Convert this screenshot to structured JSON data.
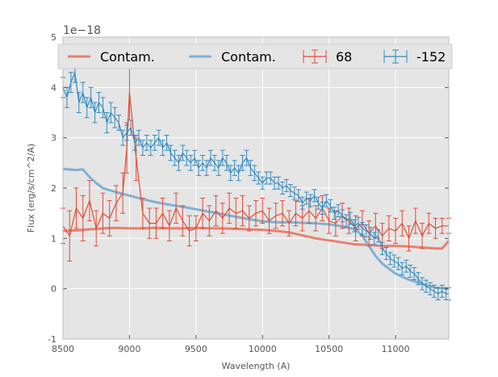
{
  "chart_data": {
    "type": "line",
    "xlabel": "Wavelength (A)",
    "ylabel": "Flux (erg/s/cm^2/A)",
    "y_offset_label": "1e−18",
    "xlim": [
      8500,
      11400
    ],
    "ylim": [
      -1,
      5
    ],
    "xticks": [
      8500,
      9000,
      9500,
      10000,
      10500,
      11000
    ],
    "yticks": [
      -1,
      0,
      1,
      2,
      3,
      4,
      5
    ],
    "grid": true,
    "legend_position": "top",
    "series": [
      {
        "name": "Contam.",
        "kind": "line",
        "color": "#E8806F",
        "x": [
          8500,
          8600,
          8700,
          8800,
          8900,
          9000,
          9100,
          9200,
          9300,
          9400,
          9500,
          9600,
          9700,
          9800,
          9900,
          10000,
          10100,
          10200,
          10300,
          10400,
          10500,
          10600,
          10700,
          10800,
          10900,
          11000,
          11100,
          11200,
          11300,
          11350,
          11400
        ],
        "y": [
          1.15,
          1.16,
          1.18,
          1.2,
          1.21,
          1.2,
          1.2,
          1.21,
          1.2,
          1.2,
          1.21,
          1.2,
          1.2,
          1.19,
          1.18,
          1.17,
          1.15,
          1.12,
          1.06,
          1.0,
          0.96,
          0.92,
          0.88,
          0.87,
          0.85,
          0.85,
          0.84,
          0.82,
          0.8,
          0.8,
          0.95
        ]
      },
      {
        "name": "Contam.",
        "kind": "line",
        "color": "#7FB0D4",
        "x": [
          8500,
          8600,
          8650,
          8700,
          8750,
          8800,
          8900,
          9000,
          9100,
          9200,
          9300,
          9400,
          9500,
          9600,
          9700,
          9800,
          9900,
          10000,
          10100,
          10200,
          10300,
          10400,
          10500,
          10600,
          10700,
          10750,
          10800,
          10850,
          10900,
          11000,
          11100,
          11200,
          11300,
          11400
        ],
        "y": [
          2.38,
          2.36,
          2.37,
          2.22,
          2.1,
          2.0,
          1.92,
          1.85,
          1.78,
          1.72,
          1.67,
          1.63,
          1.58,
          1.53,
          1.48,
          1.43,
          1.38,
          1.34,
          1.32,
          1.32,
          1.31,
          1.3,
          1.28,
          1.24,
          1.18,
          1.05,
          0.85,
          0.65,
          0.5,
          0.3,
          0.18,
          0.1,
          0.02,
          0.0
        ]
      },
      {
        "name": "68",
        "kind": "errorbar",
        "color": "#E24A33",
        "x": [
          8500,
          8550,
          8600,
          8650,
          8700,
          8750,
          8800,
          8850,
          8900,
          8950,
          8980,
          9000,
          9050,
          9100,
          9150,
          9200,
          9250,
          9300,
          9350,
          9400,
          9450,
          9500,
          9550,
          9600,
          9650,
          9700,
          9750,
          9800,
          9850,
          9900,
          9950,
          10000,
          10050,
          10100,
          10150,
          10200,
          10250,
          10300,
          10350,
          10400,
          10450,
          10500,
          10550,
          10600,
          10650,
          10700,
          10750,
          10800,
          10850,
          10900,
          10950,
          11000,
          11050,
          11100,
          11150,
          11200,
          11250,
          11300,
          11350,
          11400
        ],
        "y": [
          1.25,
          1.05,
          1.6,
          1.4,
          1.75,
          1.2,
          1.5,
          1.4,
          1.7,
          1.9,
          2.8,
          3.9,
          2.6,
          1.5,
          1.3,
          1.3,
          1.5,
          1.25,
          1.6,
          1.35,
          1.15,
          1.2,
          1.5,
          1.35,
          1.55,
          1.4,
          1.6,
          1.5,
          1.55,
          1.4,
          1.5,
          1.55,
          1.35,
          1.45,
          1.5,
          1.3,
          1.5,
          1.4,
          1.55,
          1.4,
          1.6,
          1.35,
          1.3,
          1.45,
          1.35,
          1.2,
          1.3,
          1.1,
          1.25,
          1.05,
          1.2,
          1.15,
          1.3,
          1.0,
          1.35,
          1.05,
          1.3,
          1.2,
          1.25,
          1.25
        ],
        "err": [
          0.35,
          0.5,
          0.4,
          0.45,
          0.4,
          0.35,
          0.4,
          0.35,
          0.35,
          0.4,
          0.5,
          0.55,
          0.45,
          0.3,
          0.3,
          0.3,
          0.3,
          0.3,
          0.3,
          0.3,
          0.3,
          0.25,
          0.3,
          0.3,
          0.3,
          0.3,
          0.3,
          0.3,
          0.3,
          0.25,
          0.25,
          0.25,
          0.25,
          0.25,
          0.25,
          0.25,
          0.25,
          0.25,
          0.25,
          0.25,
          0.25,
          0.25,
          0.25,
          0.25,
          0.25,
          0.25,
          0.25,
          0.25,
          0.25,
          0.25,
          0.25,
          0.25,
          0.25,
          0.25,
          0.25,
          0.25,
          0.2,
          0.2,
          0.15,
          0.15
        ]
      },
      {
        "name": "-152",
        "kind": "errorbar",
        "color": "#348ABD",
        "x": [
          8500,
          8530,
          8560,
          8590,
          8620,
          8650,
          8680,
          8710,
          8740,
          8770,
          8800,
          8830,
          8860,
          8890,
          8920,
          8950,
          8980,
          9010,
          9040,
          9070,
          9100,
          9130,
          9160,
          9190,
          9220,
          9250,
          9280,
          9310,
          9340,
          9370,
          9400,
          9430,
          9460,
          9490,
          9520,
          9550,
          9580,
          9610,
          9640,
          9670,
          9700,
          9730,
          9760,
          9790,
          9820,
          9850,
          9880,
          9910,
          9940,
          9970,
          10000,
          10030,
          10060,
          10090,
          10120,
          10150,
          10180,
          10210,
          10240,
          10270,
          10300,
          10330,
          10360,
          10390,
          10420,
          10450,
          10480,
          10510,
          10540,
          10570,
          10600,
          10630,
          10660,
          10690,
          10720,
          10750,
          10780,
          10810,
          10840,
          10870,
          10900,
          10930,
          10960,
          10990,
          11020,
          11050,
          11080,
          11110,
          11140,
          11170,
          11200,
          11230,
          11260,
          11290,
          11320,
          11350,
          11380,
          11400
        ],
        "y": [
          4.0,
          3.8,
          4.1,
          4.3,
          3.7,
          3.9,
          3.6,
          3.8,
          3.5,
          3.7,
          3.6,
          3.3,
          3.5,
          3.4,
          3.3,
          3.0,
          3.1,
          3.2,
          2.9,
          3.0,
          2.8,
          2.9,
          2.8,
          2.9,
          3.0,
          2.8,
          2.9,
          2.7,
          2.6,
          2.5,
          2.7,
          2.6,
          2.5,
          2.6,
          2.4,
          2.5,
          2.4,
          2.6,
          2.5,
          2.4,
          2.6,
          2.5,
          2.3,
          2.4,
          2.3,
          2.5,
          2.6,
          2.4,
          2.3,
          2.2,
          2.1,
          2.2,
          2.2,
          2.1,
          2.1,
          2.0,
          2.05,
          1.95,
          1.9,
          1.85,
          1.7,
          1.8,
          1.75,
          1.85,
          1.7,
          1.6,
          1.75,
          1.65,
          1.5,
          1.55,
          1.45,
          1.35,
          1.4,
          1.25,
          1.3,
          1.2,
          1.15,
          1.1,
          1.0,
          1.05,
          0.8,
          0.7,
          0.6,
          0.55,
          0.5,
          0.4,
          0.45,
          0.35,
          0.3,
          0.2,
          0.1,
          0.05,
          0.0,
          -0.05,
          -0.1,
          -0.05,
          -0.1,
          -0.1
        ],
        "err": [
          0.2,
          0.2,
          0.2,
          0.2,
          0.2,
          0.2,
          0.2,
          0.2,
          0.2,
          0.2,
          0.2,
          0.2,
          0.2,
          0.2,
          0.15,
          0.15,
          0.15,
          0.15,
          0.15,
          0.15,
          0.15,
          0.15,
          0.15,
          0.15,
          0.15,
          0.15,
          0.15,
          0.15,
          0.15,
          0.15,
          0.15,
          0.15,
          0.15,
          0.15,
          0.15,
          0.15,
          0.15,
          0.15,
          0.15,
          0.15,
          0.15,
          0.15,
          0.15,
          0.15,
          0.15,
          0.15,
          0.15,
          0.15,
          0.15,
          0.12,
          0.12,
          0.12,
          0.12,
          0.12,
          0.12,
          0.12,
          0.12,
          0.12,
          0.12,
          0.12,
          0.12,
          0.12,
          0.12,
          0.12,
          0.12,
          0.12,
          0.12,
          0.12,
          0.12,
          0.12,
          0.12,
          0.12,
          0.12,
          0.12,
          0.12,
          0.12,
          0.12,
          0.12,
          0.12,
          0.12,
          0.12,
          0.12,
          0.12,
          0.12,
          0.12,
          0.12,
          0.12,
          0.12,
          0.12,
          0.12,
          0.12,
          0.12,
          0.12,
          0.12,
          0.12,
          0.12,
          0.12,
          0.12
        ]
      }
    ]
  }
}
